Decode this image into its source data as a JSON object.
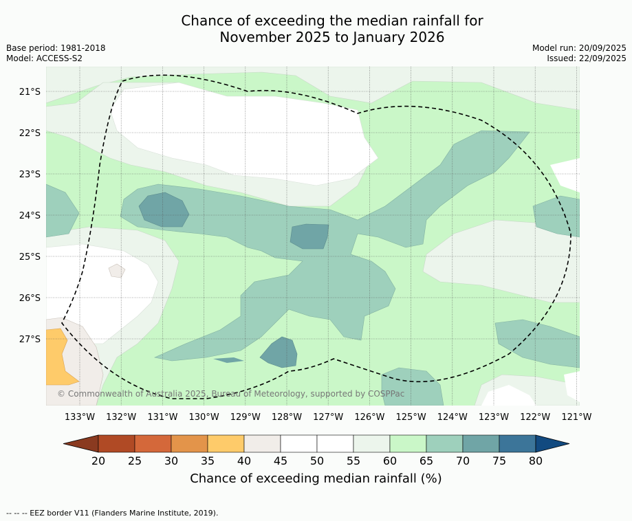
{
  "title_line1": "Chance of exceeding the median rainfall for",
  "title_line2": "November 2025 to January 2026",
  "left_meta": {
    "base_period": "Base period: 1981-2018",
    "model": "Model: ACCESS-S2"
  },
  "right_meta": {
    "model_run": "Model run: 20/09/2025",
    "issued": "Issued: 22/09/2025"
  },
  "copyright": "© Commonwealth of Australia 2025, Bureau of Meteorology, supported by COSPPac",
  "lat_labels": [
    "21°S",
    "22°S",
    "23°S",
    "24°S",
    "25°S",
    "26°S",
    "27°S"
  ],
  "lon_labels": [
    "133°W",
    "132°W",
    "131°W",
    "130°W",
    "129°W",
    "128°W",
    "127°W",
    "126°W",
    "125°W",
    "124°W",
    "123°W",
    "122°W",
    "121°W"
  ],
  "colorbar": {
    "ticks": [
      "20",
      "25",
      "30",
      "35",
      "40",
      "45",
      "50",
      "55",
      "60",
      "65",
      "70",
      "75",
      "80"
    ],
    "colors": [
      "#b04a25",
      "#d4683a",
      "#e3944a",
      "#fecb6a",
      "#f1ede9",
      "#ffffff",
      "#ffffff",
      "#ecf5ec",
      "#caf7c8",
      "#9ed0bc",
      "#70a5a6",
      "#3c7599"
    ],
    "extend_low": "#8a3a20",
    "extend_high": "#124a80",
    "label": "Chance of exceeding median rainfall (%)"
  },
  "footer": "--  --  -- EEZ border V11 (Flanders Marine Institute, 2019)."
}
